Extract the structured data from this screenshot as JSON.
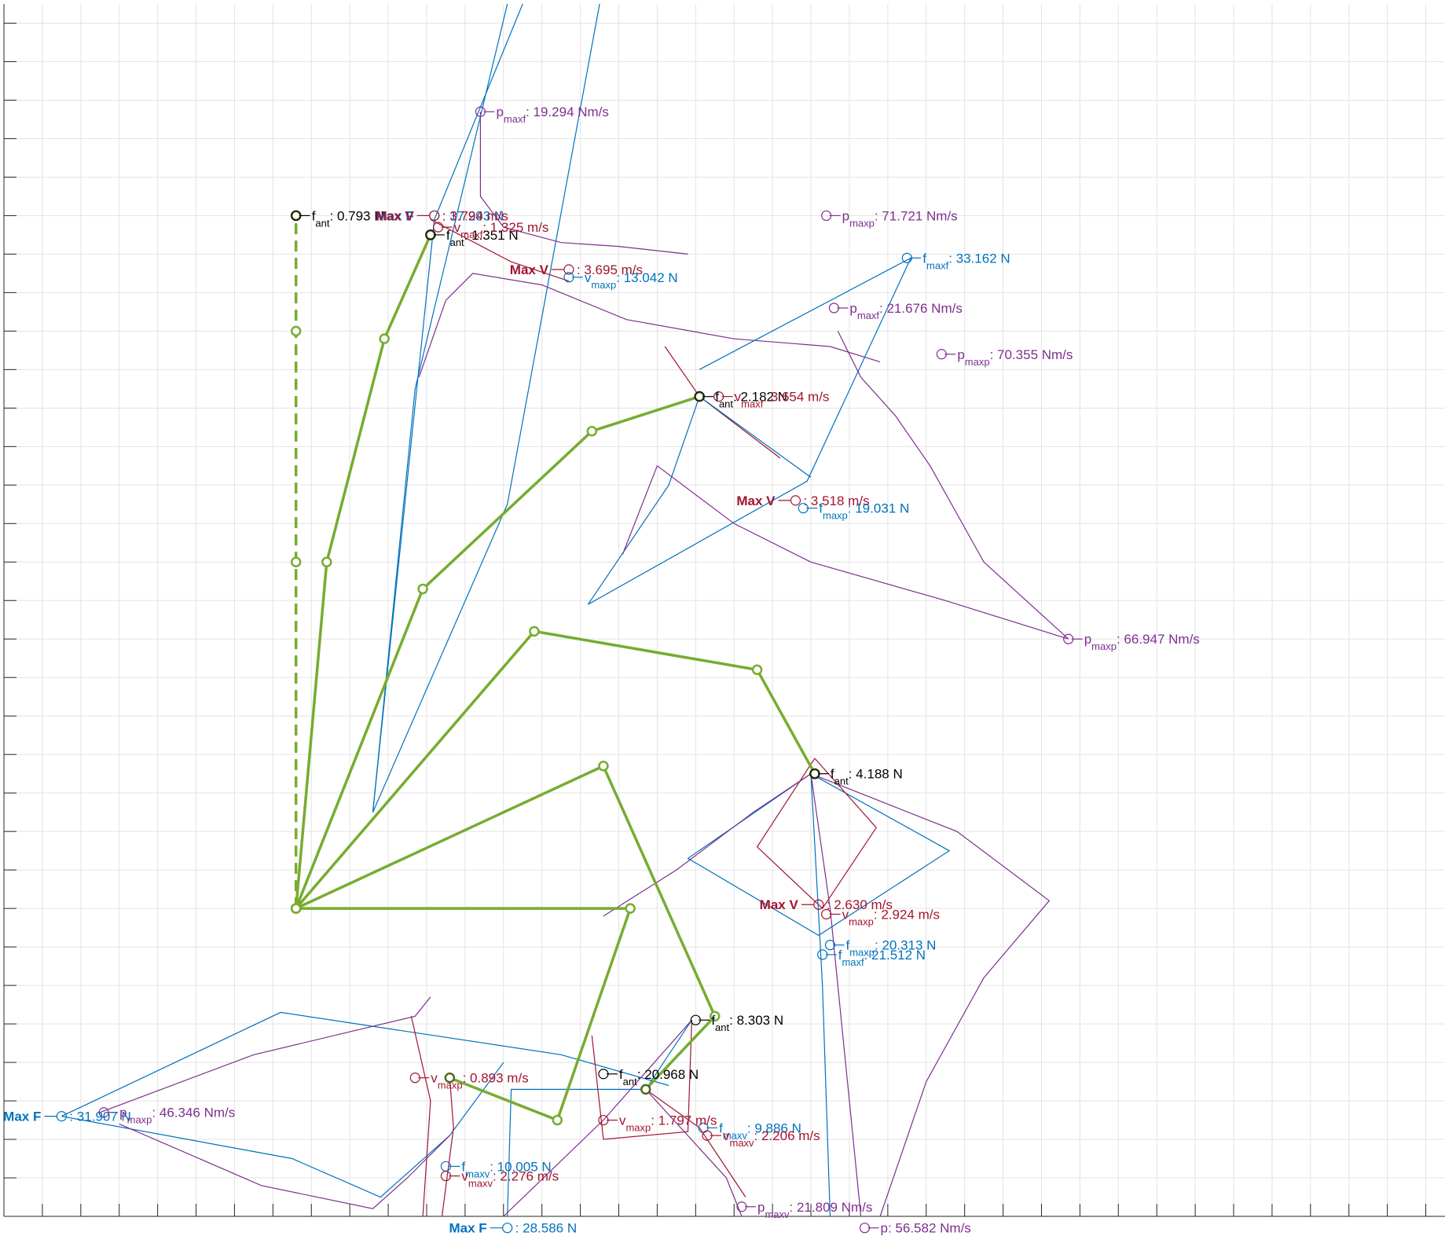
{
  "chart_data": {
    "type": "line",
    "title": "",
    "xlabel": "",
    "ylabel": "",
    "grid": true,
    "xlim": [
      0,
      37.5
    ],
    "ylim": [
      0,
      31.5
    ],
    "colors": {
      "linkage": "#77ac30",
      "force": "#0072bd",
      "velocity": "#a2142f",
      "power": "#7e2f8e",
      "antenna": "#000000",
      "grid": "#e3e3e3"
    },
    "linkages": [
      {
        "name": "",
        "dashed": true,
        "points": [
          [
            7.6,
            8
          ],
          [
            7.6,
            17
          ],
          [
            7.6,
            23
          ],
          [
            7.6,
            26
          ]
        ]
      },
      {
        "name": "",
        "points": [
          [
            7.6,
            8
          ],
          [
            8.4,
            17
          ],
          [
            9.9,
            22.8
          ],
          [
            11.1,
            25.5
          ]
        ]
      },
      {
        "name": "",
        "points": [
          [
            7.6,
            8
          ],
          [
            10.9,
            16.3
          ],
          [
            15.3,
            20.4
          ],
          [
            18.1,
            21.3
          ]
        ]
      },
      {
        "name": "",
        "points": [
          [
            7.6,
            8
          ],
          [
            13.8,
            15.2
          ],
          [
            19.6,
            14.2
          ],
          [
            21.1,
            11.5
          ]
        ]
      },
      {
        "name": "",
        "points": [
          [
            7.6,
            8
          ],
          [
            15.6,
            11.7
          ],
          [
            18.5,
            5.2
          ],
          [
            16.7,
            3.3
          ]
        ]
      },
      {
        "name": "",
        "points": [
          [
            7.6,
            8
          ],
          [
            16.3,
            8
          ],
          [
            14.4,
            2.5
          ],
          [
            11.6,
            3.6
          ]
        ]
      }
    ],
    "guide_curves": [
      {
        "kind": "force",
        "points": [
          [
            13.1,
            31.5
          ],
          [
            10.7,
            21.5
          ],
          [
            9.6,
            10.5
          ]
        ]
      },
      {
        "kind": "force",
        "points": [
          [
            13.5,
            31.5
          ],
          [
            11.2,
            25.9
          ],
          [
            9.6,
            10.5
          ]
        ]
      },
      {
        "kind": "force",
        "points": [
          [
            15.5,
            31.5
          ],
          [
            13.1,
            18.5
          ],
          [
            9.6,
            10.5
          ]
        ]
      },
      {
        "kind": "power",
        "points": [
          [
            12.4,
            28.7
          ],
          [
            12.4,
            26.5
          ],
          [
            13.0,
            25.7
          ],
          [
            14.5,
            25.3
          ],
          [
            16.0,
            25.2
          ],
          [
            17.8,
            25.0
          ]
        ]
      },
      {
        "kind": "power",
        "points": [
          [
            10.8,
            21.8
          ],
          [
            11.5,
            23.8
          ],
          [
            12.2,
            24.5
          ],
          [
            14.0,
            24.2
          ],
          [
            16.2,
            23.3
          ],
          [
            19.0,
            22.8
          ],
          [
            21.5,
            22.6
          ],
          [
            22.8,
            22.2
          ]
        ]
      },
      {
        "kind": "power",
        "points": [
          [
            21.7,
            23.0
          ],
          [
            22.3,
            21.8
          ],
          [
            23.2,
            20.8
          ],
          [
            24.1,
            19.5
          ],
          [
            25.5,
            17.0
          ],
          [
            27.7,
            15.0
          ]
        ]
      },
      {
        "kind": "velocity",
        "points": [
          [
            11.1,
            25.9
          ],
          [
            13.2,
            24.8
          ],
          [
            14.7,
            24.3
          ]
        ]
      },
      {
        "kind": "velocity",
        "points": [
          [
            17.2,
            22.6
          ],
          [
            18.1,
            21.3
          ],
          [
            20.2,
            19.7
          ]
        ]
      },
      {
        "kind": "force",
        "points": [
          [
            15.2,
            15.9
          ],
          [
            17.3,
            19.0
          ],
          [
            18.1,
            21.3
          ],
          [
            21.0,
            19.2
          ]
        ]
      },
      {
        "kind": "power",
        "points": [
          [
            16.1,
            17.2
          ],
          [
            17.0,
            19.5
          ],
          [
            19.0,
            18.0
          ],
          [
            21.0,
            17.0
          ],
          [
            24.5,
            16.0
          ],
          [
            27.7,
            15.0
          ]
        ]
      },
      {
        "kind": "force",
        "points": [
          [
            18.1,
            22.0
          ],
          [
            23.6,
            24.9
          ],
          [
            20.9,
            19.1
          ],
          [
            15.2,
            15.9
          ]
        ]
      },
      {
        "kind": "force",
        "points": [
          [
            21.0,
            11.5
          ],
          [
            24.6,
            9.5
          ],
          [
            21.2,
            7.3
          ],
          [
            17.8,
            9.3
          ],
          [
            21.0,
            11.5
          ]
        ]
      },
      {
        "kind": "velocity",
        "points": [
          [
            21.1,
            11.9
          ],
          [
            22.7,
            10.1
          ],
          [
            21.3,
            8.0
          ],
          [
            19.6,
            9.6
          ],
          [
            21.1,
            11.9
          ]
        ]
      },
      {
        "kind": "power",
        "points": [
          [
            21.0,
            11.5
          ],
          [
            24.8,
            10.0
          ],
          [
            27.2,
            8.2
          ],
          [
            25.5,
            6.2
          ],
          [
            24.0,
            3.5
          ],
          [
            22.8,
            0
          ]
        ]
      },
      {
        "kind": "power",
        "points": [
          [
            15.6,
            7.8
          ],
          [
            17.5,
            9.0
          ],
          [
            19.5,
            10.5
          ],
          [
            21.0,
            11.5
          ]
        ]
      },
      {
        "kind": "force",
        "points": [
          [
            21.0,
            11.5
          ],
          [
            21.3,
            6.0
          ],
          [
            21.5,
            0
          ]
        ]
      },
      {
        "kind": "power",
        "points": [
          [
            21.0,
            11.5
          ],
          [
            21.5,
            8.0
          ],
          [
            22.3,
            0
          ]
        ]
      },
      {
        "kind": "force",
        "points": [
          [
            1.5,
            2.6
          ],
          [
            7.2,
            5.3
          ],
          [
            14.5,
            4.2
          ],
          [
            17.3,
            3.4
          ]
        ]
      },
      {
        "kind": "force",
        "points": [
          [
            1.5,
            2.6
          ],
          [
            7.5,
            1.5
          ],
          [
            9.8,
            0.5
          ],
          [
            11.6,
            2.1
          ],
          [
            13.0,
            4.0
          ]
        ]
      },
      {
        "kind": "power",
        "points": [
          [
            2.5,
            2.7
          ],
          [
            6.5,
            4.2
          ],
          [
            10.7,
            5.2
          ],
          [
            11.1,
            5.7
          ]
        ]
      },
      {
        "kind": "power",
        "points": [
          [
            3.0,
            2.4
          ],
          [
            6.7,
            0.8
          ],
          [
            9.6,
            0.2
          ],
          [
            10.5,
            1.0
          ],
          [
            11.6,
            2.1
          ]
        ]
      },
      {
        "kind": "velocity",
        "points": [
          [
            10.6,
            5.2
          ],
          [
            11.1,
            3.0
          ],
          [
            10.9,
            0
          ]
        ]
      },
      {
        "kind": "velocity",
        "points": [
          [
            11.6,
            3.6
          ],
          [
            11.7,
            2.3
          ],
          [
            11.4,
            0
          ]
        ]
      },
      {
        "kind": "force",
        "points": [
          [
            13.1,
            0
          ],
          [
            13.2,
            3.3
          ],
          [
            16.7,
            3.3
          ],
          [
            17.9,
            5.1
          ]
        ]
      },
      {
        "kind": "power",
        "points": [
          [
            13.0,
            0
          ],
          [
            15.6,
            2.5
          ],
          [
            17.9,
            5.1
          ]
        ]
      },
      {
        "kind": "velocity",
        "points": [
          [
            15.3,
            4.7
          ],
          [
            15.6,
            2.0
          ],
          [
            17.8,
            2.2
          ],
          [
            17.9,
            5.1
          ]
        ]
      },
      {
        "kind": "power",
        "points": [
          [
            16.7,
            3.3
          ],
          [
            18.8,
            1.0
          ],
          [
            19.2,
            0
          ]
        ]
      },
      {
        "kind": "velocity",
        "points": [
          [
            16.7,
            3.3
          ],
          [
            18.1,
            2.3
          ],
          [
            19.3,
            0.5
          ]
        ]
      }
    ],
    "markers": [
      {
        "kind": "antenna",
        "x": 7.6,
        "y": 26,
        "label": "f",
        "sub": "ant",
        "value": ": 0.793 N",
        "dir": "right"
      },
      {
        "kind": "antenna",
        "x": 11.1,
        "y": 25.5,
        "label": "f",
        "sub": "ant",
        "value": ": 1.351 N",
        "dir": "right"
      },
      {
        "kind": "antenna",
        "x": 18.1,
        "y": 21.3,
        "label": "f",
        "sub": "ant",
        "value": ": 2.182 N",
        "dir": "right"
      },
      {
        "kind": "antenna",
        "x": 21.1,
        "y": 11.5,
        "label": "f",
        "sub": "ant",
        "value": ": 4.188 N",
        "dir": "right"
      },
      {
        "kind": "antenna",
        "x": 18.0,
        "y": 5.1,
        "label": "f",
        "sub": "ant",
        "value": ": 8.303 N",
        "dir": "right"
      },
      {
        "kind": "antenna",
        "x": 15.6,
        "y": 3.7,
        "label": "f",
        "sub": "ant",
        "value": ": 20.968 N",
        "dir": "right"
      },
      {
        "kind": "force",
        "x": 11.2,
        "y": 26.0,
        "label": "Max F",
        "value": ": 17.293 N",
        "bold": true
      },
      {
        "kind": "velocity",
        "x": 11.2,
        "y": 26.0,
        "label": "Max V",
        "value": ": 3.794 m/s",
        "bold": true
      },
      {
        "kind": "velocity",
        "x": 11.3,
        "y": 25.7,
        "label": "v",
        "sub": "maxf",
        "value": ": 1.325 m/s"
      },
      {
        "kind": "power",
        "x": 12.4,
        "y": 28.7,
        "label": "p",
        "sub": "maxf",
        "value": ": 19.294 Nm/s"
      },
      {
        "kind": "power",
        "x": 21.4,
        "y": 26.0,
        "label": "p",
        "sub": "maxp",
        "value": ": 71.721 Nm/s"
      },
      {
        "kind": "velocity",
        "x": 14.7,
        "y": 24.6,
        "label": "Max V",
        "value": ": 3.695 m/s",
        "bold": true
      },
      {
        "kind": "force",
        "x": 14.7,
        "y": 24.4,
        "label": "v",
        "sub": "maxp",
        "value": ": 13.042 N"
      },
      {
        "kind": "force",
        "x": 23.5,
        "y": 24.9,
        "label": "f",
        "sub": "maxf",
        "value": ": 33.162 N"
      },
      {
        "kind": "power",
        "x": 21.6,
        "y": 23.6,
        "label": "p",
        "sub": "maxf",
        "value": ": 21.676 Nm/s"
      },
      {
        "kind": "power",
        "x": 24.4,
        "y": 22.4,
        "label": "p",
        "sub": "maxp",
        "value": ": 70.355 Nm/s"
      },
      {
        "kind": "velocity",
        "x": 18.6,
        "y": 21.3,
        "label": "v",
        "sub": "maxf",
        "value": ": 3.654 m/s"
      },
      {
        "kind": "velocity",
        "x": 20.6,
        "y": 18.6,
        "label": "Max V",
        "value": ": 3.518 m/s",
        "bold": true
      },
      {
        "kind": "force",
        "x": 20.8,
        "y": 18.4,
        "label": "f",
        "sub": "maxp",
        "value": ": 19.031 N"
      },
      {
        "kind": "power",
        "x": 27.7,
        "y": 15.0,
        "label": "p",
        "sub": "maxp",
        "value": ": 66.947 Nm/s"
      },
      {
        "kind": "velocity",
        "x": 21.2,
        "y": 8.1,
        "label": "Max V",
        "value": ": 2.630 m/s",
        "bold": true
      },
      {
        "kind": "velocity",
        "x": 21.4,
        "y": 7.85,
        "label": "v",
        "sub": "maxp",
        "value": ": 2.924 m/s"
      },
      {
        "kind": "force",
        "x": 21.5,
        "y": 7.05,
        "label": "f",
        "sub": "maxp",
        "value": ": 20.313 N"
      },
      {
        "kind": "force",
        "x": 21.3,
        "y": 6.8,
        "label": "f",
        "sub": "maxf",
        "value": ": 21.512 N"
      },
      {
        "kind": "velocity",
        "x": 10.7,
        "y": 3.6,
        "label": "v",
        "sub": "maxp",
        "value": ": 0.893 m/s"
      },
      {
        "kind": "force",
        "x": 1.5,
        "y": 2.6,
        "label": "Max F",
        "value": ": 31.907 N",
        "bold": true
      },
      {
        "kind": "power",
        "x": 2.6,
        "y": 2.7,
        "label": "p",
        "sub": "maxp",
        "value": ": 46.346 Nm/s"
      },
      {
        "kind": "velocity",
        "x": 15.6,
        "y": 2.5,
        "label": "v",
        "sub": "maxp",
        "value": ": 1.797 m/s"
      },
      {
        "kind": "force",
        "x": 18.2,
        "y": 2.3,
        "label": "f",
        "sub": "maxv",
        "value": ": 9.886 N"
      },
      {
        "kind": "velocity",
        "x": 18.3,
        "y": 2.1,
        "label": "v",
        "sub": "maxv",
        "value": ": 2.206 m/s"
      },
      {
        "kind": "force",
        "x": 11.5,
        "y": 1.3,
        "label": "f",
        "sub": "maxv",
        "value": ": 10.005 N"
      },
      {
        "kind": "velocity",
        "x": 11.5,
        "y": 1.05,
        "label": "v",
        "sub": "maxv",
        "value": ": 2.276 m/s"
      },
      {
        "kind": "power",
        "x": 19.2,
        "y": 0.25,
        "label": "p",
        "sub": "maxv",
        "value": ": 21.809 Nm/s"
      },
      {
        "kind": "force",
        "x": 13.1,
        "y": -0.3,
        "label": "Max F",
        "value": ": 28.586 N",
        "bold": true
      },
      {
        "kind": "power",
        "x": 22.4,
        "y": -0.3,
        "label": "p",
        "sub": "",
        "value": ": 56.582 Nm/s"
      }
    ]
  }
}
